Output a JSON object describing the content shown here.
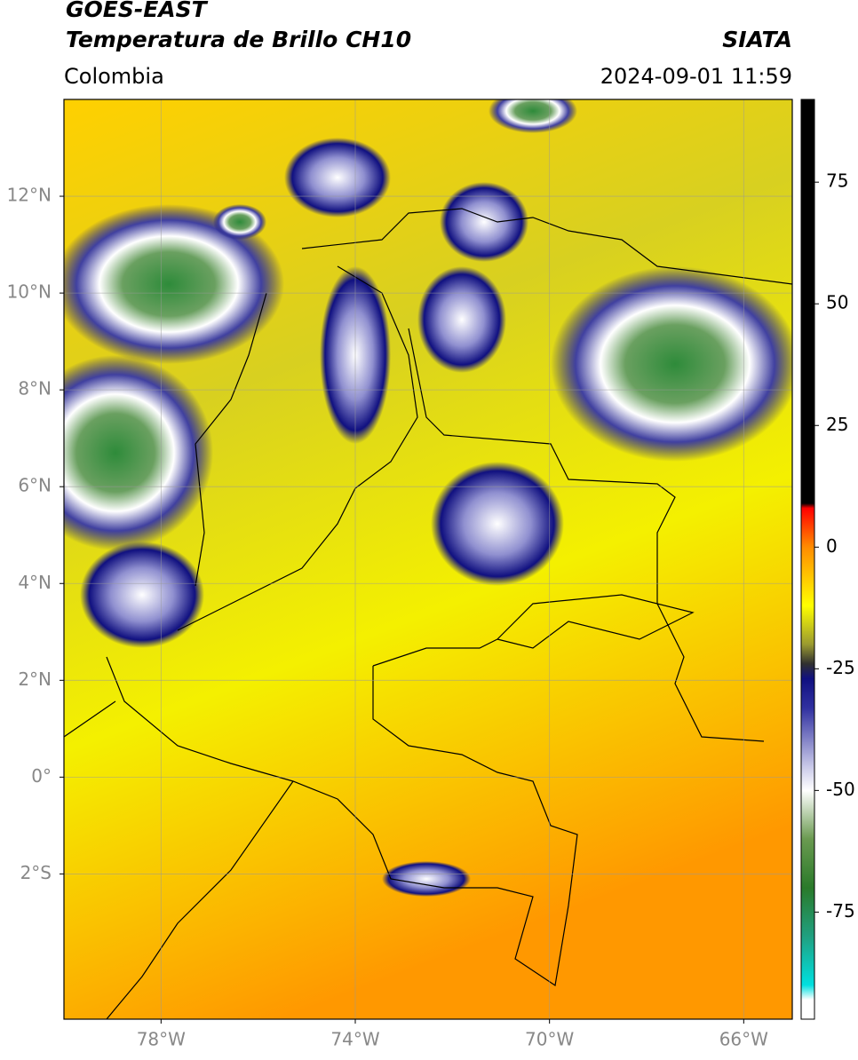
{
  "chart_data": {
    "type": "map",
    "title": "GOES-EAST",
    "subtitle": "Temperatura de Brillo CH10",
    "source": "SIATA",
    "region": "Colombia",
    "timestamp": "2024-09-01 11:59",
    "xlim": [
      -80,
      -65
    ],
    "ylim": [
      -5,
      14
    ],
    "xticks": [
      {
        "value": -78,
        "label": "78°W"
      },
      {
        "value": -74,
        "label": "74°W"
      },
      {
        "value": -70,
        "label": "70°W"
      },
      {
        "value": -66,
        "label": "66°W"
      }
    ],
    "yticks": [
      {
        "value": -2,
        "label": "2°S"
      },
      {
        "value": 0,
        "label": "0°"
      },
      {
        "value": 2,
        "label": "2°N"
      },
      {
        "value": 4,
        "label": "4°N"
      },
      {
        "value": 6,
        "label": "6°N"
      },
      {
        "value": 8,
        "label": "8°N"
      },
      {
        "value": 10,
        "label": "10°N"
      },
      {
        "value": 12,
        "label": "12°N"
      }
    ],
    "grid": true,
    "colorbar": {
      "clim": [
        -97,
        92
      ],
      "ticks": [
        -75,
        -50,
        -25,
        0,
        25,
        50,
        75
      ],
      "stops": [
        [
          92,
          "#000000"
        ],
        [
          9,
          "#000000"
        ],
        [
          8,
          "#ff0000"
        ],
        [
          0,
          "#ff8c00"
        ],
        [
          -12,
          "#ffff00"
        ],
        [
          -20,
          "#9a9a30"
        ],
        [
          -24,
          "#303030"
        ],
        [
          -27,
          "#101080"
        ],
        [
          -33,
          "#3030a0"
        ],
        [
          -45,
          "#c8c8e8"
        ],
        [
          -50,
          "#ffffff"
        ],
        [
          -60,
          "#6a9a50"
        ],
        [
          -70,
          "#2a7a2a"
        ],
        [
          -80,
          "#20a080"
        ],
        [
          -90,
          "#00e0e0"
        ],
        [
          -93,
          "#ffffff"
        ],
        [
          -97,
          "#ffffff"
        ]
      ]
    }
  }
}
